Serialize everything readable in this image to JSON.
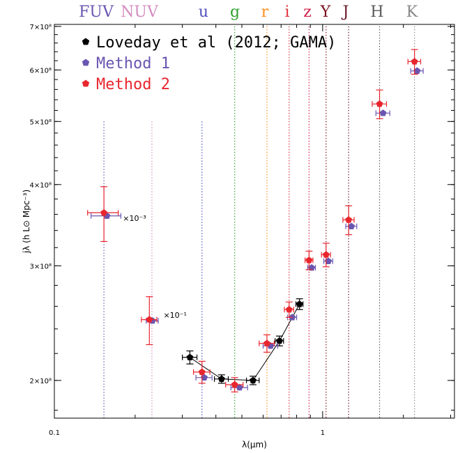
{
  "chart_data": {
    "type": "scatter",
    "xlabel": "λ(μm)",
    "ylabel": "jλ (h L⊙ Mpc⁻³)",
    "xscale": "log",
    "yscale": "log",
    "xlim": [
      0.1,
      3.1
    ],
    "ylim": [
      175000000.0,
      705000000.0
    ],
    "x_ticks": [
      {
        "v": 0.1,
        "label": "0.1"
      },
      {
        "v": 1,
        "label": "1"
      }
    ],
    "y_ticks": [
      {
        "v": 200000000.0,
        "label": "2×10⁸"
      },
      {
        "v": 300000000.0,
        "label": "3×10⁸"
      },
      {
        "v": 400000000.0,
        "label": "4×10⁸"
      },
      {
        "v": 500000000.0,
        "label": "5×10⁸"
      },
      {
        "v": 600000000.0,
        "label": "6×10⁸"
      },
      {
        "v": 700000000.0,
        "label": "7×10⁸"
      }
    ],
    "bands": [
      {
        "label": "FUV",
        "lambda": 0.153,
        "color": "#6a56b0",
        "line_top": 500000000.0
      },
      {
        "label": "NUV",
        "lambda": 0.231,
        "color": "#d48cc0",
        "line_top": 500000000.0
      },
      {
        "label": "u",
        "lambda": 0.355,
        "color": "#5050c0",
        "line_top": 500000000.0
      },
      {
        "label": "g",
        "lambda": 0.47,
        "color": "#30a030",
        "line_top": 700000000.0
      },
      {
        "label": "r",
        "lambda": 0.62,
        "color": "#ff8c1a",
        "line_top": 700000000.0
      },
      {
        "label": "i",
        "lambda": 0.75,
        "color": "#e0303a",
        "line_top": 700000000.0
      },
      {
        "label": "z",
        "lambda": 0.89,
        "color": "#d0204a",
        "line_top": 700000000.0
      },
      {
        "label": "Y",
        "lambda": 1.03,
        "color": "#7a1020",
        "line_top": 700000000.0
      },
      {
        "label": "J",
        "lambda": 1.25,
        "color": "#6a1a2a",
        "line_top": 700000000.0
      },
      {
        "label": "H",
        "lambda": 1.63,
        "color": "#5a5a5a",
        "line_top": 700000000.0
      },
      {
        "label": "K",
        "lambda": 2.2,
        "color": "#888888",
        "line_top": 700000000.0
      }
    ],
    "series": [
      {
        "name": "Loveday et al (2012; GAMA)",
        "color": "#000000",
        "connected": true,
        "points": [
          {
            "x": 0.32,
            "y": 217000000.0,
            "xerr": 0.02,
            "yerr": 5000000.0
          },
          {
            "x": 0.42,
            "y": 201000000.0,
            "xerr": 0.025,
            "yerr": 3000000.0
          },
          {
            "x": 0.55,
            "y": 200000000.0,
            "xerr": 0.03,
            "yerr": 3000000.0
          },
          {
            "x": 0.69,
            "y": 230000000.0,
            "xerr": 0.025,
            "yerr": 4000000.0
          },
          {
            "x": 0.82,
            "y": 262000000.0,
            "xerr": 0.025,
            "yerr": 5000000.0
          }
        ]
      },
      {
        "name": "Method 1",
        "color": "#6a56b0",
        "connected": false,
        "points": [
          {
            "x": 0.157,
            "y": 358000000.0,
            "xerr": 0.02,
            "yerr": 0
          },
          {
            "x": 0.232,
            "y": 247000000.0,
            "xerr": 0.012,
            "yerr": 0
          },
          {
            "x": 0.362,
            "y": 202000000.0,
            "xerr": 0.025,
            "yerr": 0
          },
          {
            "x": 0.49,
            "y": 195000000.0,
            "xerr": 0.035,
            "yerr": 0
          },
          {
            "x": 0.64,
            "y": 226000000.0,
            "xerr": 0.04,
            "yerr": 0
          },
          {
            "x": 0.77,
            "y": 250000000.0,
            "xerr": 0.03,
            "yerr": 0
          },
          {
            "x": 0.91,
            "y": 298000000.0,
            "xerr": 0.03,
            "yerr": 0
          },
          {
            "x": 1.05,
            "y": 305000000.0,
            "xerr": 0.04,
            "yerr": 0
          },
          {
            "x": 1.28,
            "y": 345000000.0,
            "xerr": 0.06,
            "yerr": 0
          },
          {
            "x": 1.68,
            "y": 515000000.0,
            "xerr": 0.1,
            "yerr": 0
          },
          {
            "x": 2.25,
            "y": 598000000.0,
            "xerr": 0.12,
            "yerr": 0
          }
        ]
      },
      {
        "name": "Method 2",
        "color": "#e8262e",
        "connected": false,
        "points": [
          {
            "x": 0.153,
            "y": 362000000.0,
            "xerr": 0.02,
            "yerr": 35000000.0
          },
          {
            "x": 0.226,
            "y": 248000000.0,
            "xerr": 0.015,
            "yerr": 21000000.0
          },
          {
            "x": 0.355,
            "y": 206000000.0,
            "xerr": 0.025,
            "yerr": 8000000.0
          },
          {
            "x": 0.47,
            "y": 197000000.0,
            "xerr": 0.035,
            "yerr": 5000000.0
          },
          {
            "x": 0.62,
            "y": 228000000.0,
            "xerr": 0.04,
            "yerr": 7000000.0
          },
          {
            "x": 0.75,
            "y": 257000000.0,
            "xerr": 0.03,
            "yerr": 7000000.0
          },
          {
            "x": 0.89,
            "y": 306000000.0,
            "xerr": 0.03,
            "yerr": 10000000.0
          },
          {
            "x": 1.03,
            "y": 312000000.0,
            "xerr": 0.04,
            "yerr": 13000000.0
          },
          {
            "x": 1.25,
            "y": 353000000.0,
            "xerr": 0.06,
            "yerr": 18000000.0
          },
          {
            "x": 1.63,
            "y": 532000000.0,
            "xerr": 0.1,
            "yerr": 27000000.0
          },
          {
            "x": 2.2,
            "y": 618000000.0,
            "xerr": 0.12,
            "yerr": 27000000.0
          }
        ]
      }
    ],
    "annotations": [
      {
        "text": "×10⁻³",
        "x": 0.18,
        "y": 355000000.0
      },
      {
        "text": "×10⁻¹",
        "x": 0.255,
        "y": 252000000.0
      }
    ]
  }
}
